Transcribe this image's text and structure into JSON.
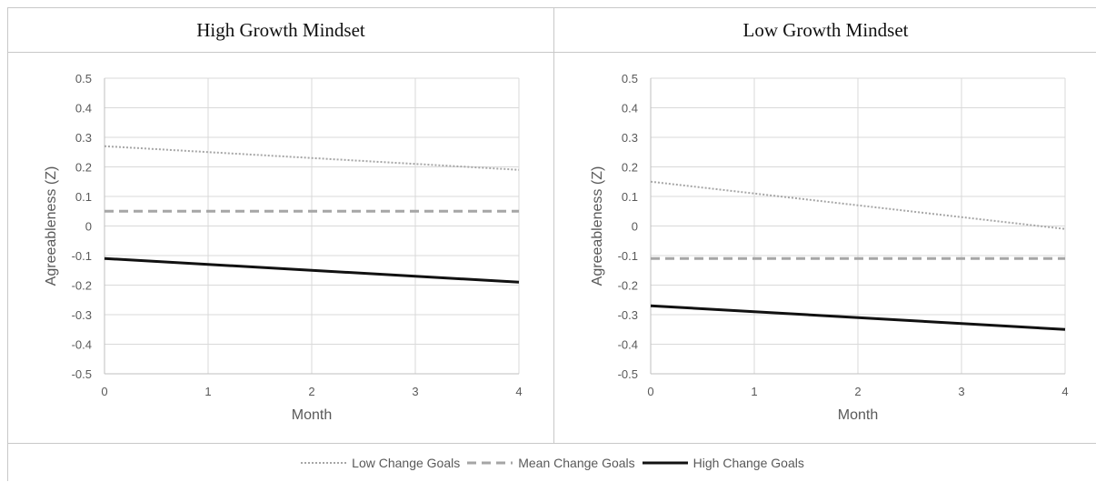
{
  "chart_data": [
    {
      "type": "line",
      "title": "High Growth Mindset",
      "xlabel": "Month",
      "ylabel": "Agreeableness (Z)",
      "x": [
        0,
        1,
        2,
        3,
        4
      ],
      "xticks": [
        "0",
        "1",
        "2",
        "3",
        "4"
      ],
      "xlim": [
        0,
        4
      ],
      "ylim": [
        -0.5,
        0.5
      ],
      "yticks": [
        "0.5",
        "0.4",
        "0.3",
        "0.2",
        "0.1",
        "0",
        "-0.1",
        "-0.2",
        "-0.3",
        "-0.4",
        "-0.5"
      ],
      "grid": true,
      "series": [
        {
          "name": "Low Change Goals",
          "values": [
            0.27,
            0.25,
            0.23,
            0.21,
            0.19
          ],
          "color": "#a6a6a6",
          "style": "dotted"
        },
        {
          "name": "Mean Change Goals",
          "values": [
            0.05,
            0.05,
            0.05,
            0.05,
            0.05
          ],
          "color": "#a6a6a6",
          "style": "dashed"
        },
        {
          "name": "High Change Goals",
          "values": [
            -0.11,
            -0.13,
            -0.15,
            -0.17,
            -0.19
          ],
          "color": "#111111",
          "style": "solid"
        }
      ]
    },
    {
      "type": "line",
      "title": "Low Growth Mindset",
      "xlabel": "Month",
      "ylabel": "Agreeableness (Z)",
      "x": [
        0,
        1,
        2,
        3,
        4
      ],
      "xticks": [
        "0",
        "1",
        "2",
        "3",
        "4"
      ],
      "xlim": [
        0,
        4
      ],
      "ylim": [
        -0.5,
        0.5
      ],
      "yticks": [
        "0.5",
        "0.4",
        "0.3",
        "0.2",
        "0.1",
        "0",
        "-0.1",
        "-0.2",
        "-0.3",
        "-0.4",
        "-0.5"
      ],
      "grid": true,
      "series": [
        {
          "name": "Low Change Goals",
          "values": [
            0.15,
            0.11,
            0.07,
            0.03,
            -0.01
          ],
          "color": "#a6a6a6",
          "style": "dotted"
        },
        {
          "name": "Mean Change Goals",
          "values": [
            -0.11,
            -0.11,
            -0.11,
            -0.11,
            -0.11
          ],
          "color": "#a6a6a6",
          "style": "dashed"
        },
        {
          "name": "High Change Goals",
          "values": [
            -0.27,
            -0.29,
            -0.31,
            -0.33,
            -0.35
          ],
          "color": "#111111",
          "style": "solid"
        }
      ]
    }
  ],
  "legend": {
    "placement": "bottom",
    "items": [
      {
        "label": "Low Change Goals",
        "color": "#a6a6a6",
        "style": "dotted"
      },
      {
        "label": "Mean Change Goals",
        "color": "#a6a6a6",
        "style": "dashed"
      },
      {
        "label": "High Change Goals",
        "color": "#111111",
        "style": "solid"
      }
    ]
  }
}
